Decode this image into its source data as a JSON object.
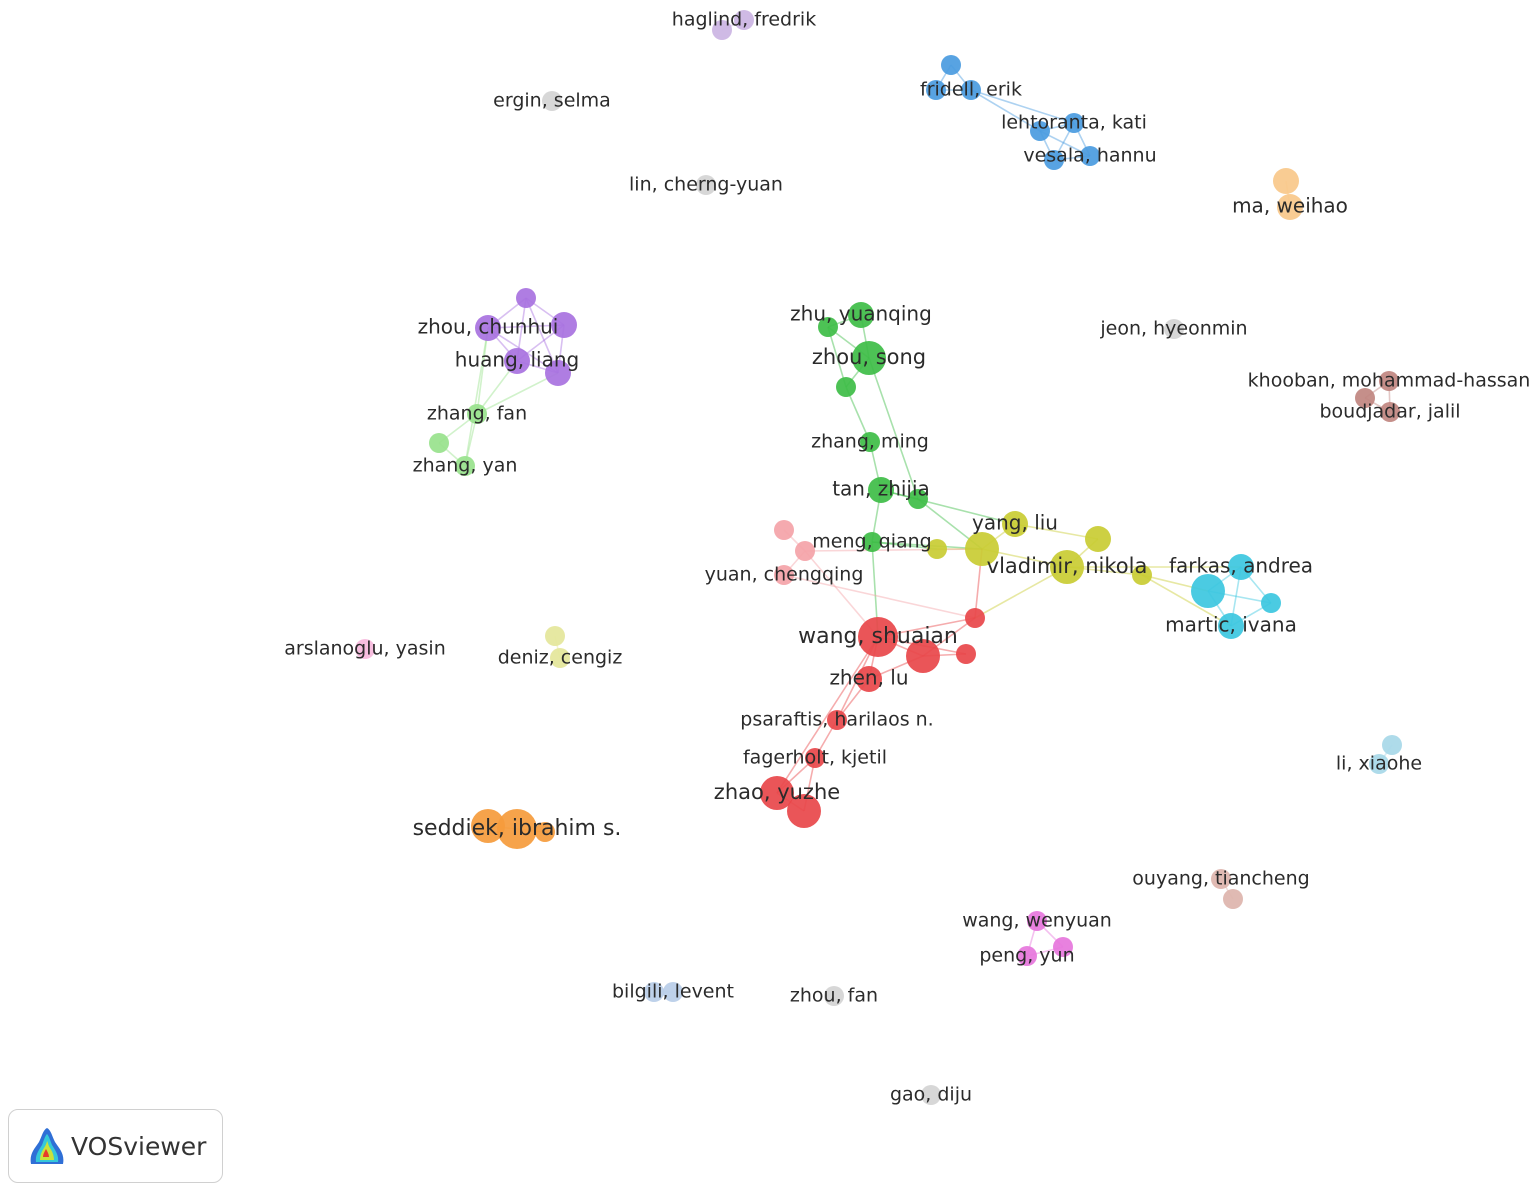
{
  "colors": {
    "red": "#e8474a",
    "green": "#3ebd46",
    "blue": "#4a9be0",
    "lightgreen": "#98e28c",
    "yellow": "#c9cc33",
    "purple": "#a872e0",
    "orange": "#f59b3c",
    "brown": "#c08680",
    "pink": "#f4a3a8",
    "cyan": "#3cc7e0",
    "magenta": "#e676dc",
    "lightblue": "#a7d8e8",
    "lavender": "#cbb4e3",
    "lightorange": "#f8c88a",
    "paleyellow": "#e4e69a",
    "palebrown": "#ddb4ac",
    "paleblue": "#b8cde8",
    "palepink": "#f6b8dc",
    "gray": "#d4d4d4"
  },
  "brand": {
    "name": "VOSviewer",
    "icon": "vosviewer-logo-icon"
  },
  "nodes": [
    {
      "id": "haglind-1",
      "label": "",
      "color": "lavender",
      "weight": 1
    },
    {
      "id": "haglind",
      "label": "haglind, fredrik",
      "color": "lavender",
      "weight": 1
    },
    {
      "id": "ergin",
      "label": "ergin, selma",
      "color": "gray",
      "weight": 1
    },
    {
      "id": "fridell-1",
      "label": "",
      "color": "blue",
      "weight": 1
    },
    {
      "id": "fridell-2",
      "label": "",
      "color": "blue",
      "weight": 1
    },
    {
      "id": "fridell",
      "label": "fridell, erik",
      "color": "blue",
      "weight": 1
    },
    {
      "id": "lehtoranta",
      "label": "lehtoranta, kati",
      "color": "blue",
      "weight": 1
    },
    {
      "id": "lehtoranta-2",
      "label": "",
      "color": "blue",
      "weight": 1
    },
    {
      "id": "vesala",
      "label": "vesala, hannu",
      "color": "blue",
      "weight": 1
    },
    {
      "id": "vesala-2",
      "label": "",
      "color": "blue",
      "weight": 1
    },
    {
      "id": "lin",
      "label": "lin, cherng-yuan",
      "color": "gray",
      "weight": 1
    },
    {
      "id": "ma-1",
      "label": "",
      "color": "lightorange",
      "weight": 2
    },
    {
      "id": "ma",
      "label": "ma, weihao",
      "color": "lightorange",
      "weight": 2
    },
    {
      "id": "zhou-c-1",
      "label": "",
      "color": "purple",
      "weight": 1
    },
    {
      "id": "zhou-c",
      "label": "zhou, chunhui",
      "color": "purple",
      "weight": 2
    },
    {
      "id": "zhou-c-2",
      "label": "",
      "color": "purple",
      "weight": 2
    },
    {
      "id": "huang",
      "label": "huang, liang",
      "color": "purple",
      "weight": 2
    },
    {
      "id": "huang-2",
      "label": "",
      "color": "purple",
      "weight": 2
    },
    {
      "id": "zhang-fan",
      "label": "zhang, fan",
      "color": "lightgreen",
      "weight": 1
    },
    {
      "id": "zhang-yan-1",
      "label": "",
      "color": "lightgreen",
      "weight": 1
    },
    {
      "id": "zhang-yan",
      "label": "zhang, yan",
      "color": "lightgreen",
      "weight": 1
    },
    {
      "id": "zhu-y-1",
      "label": "",
      "color": "green",
      "weight": 1
    },
    {
      "id": "zhu-y",
      "label": "zhu, yuanqing",
      "color": "green",
      "weight": 2
    },
    {
      "id": "zhou-song",
      "label": "zhou, song",
      "color": "green",
      "weight": 3
    },
    {
      "id": "zhou-song-2",
      "label": "",
      "color": "green",
      "weight": 1
    },
    {
      "id": "zhang-ming",
      "label": "zhang, ming",
      "color": "green",
      "weight": 1
    },
    {
      "id": "tan",
      "label": "tan, zhijia",
      "color": "green",
      "weight": 2
    },
    {
      "id": "tan-2",
      "label": "",
      "color": "green",
      "weight": 1
    },
    {
      "id": "meng",
      "label": "meng, qiang",
      "color": "green",
      "weight": 1
    },
    {
      "id": "jeon",
      "label": "jeon, hyeonmin",
      "color": "gray",
      "weight": 1
    },
    {
      "id": "khooban",
      "label": "khooban, mohammad-hassan",
      "color": "brown",
      "weight": 1
    },
    {
      "id": "boudjadar-1",
      "label": "",
      "color": "brown",
      "weight": 1
    },
    {
      "id": "boudjadar",
      "label": "boudjadar, jalil",
      "color": "brown",
      "weight": 1
    },
    {
      "id": "yang",
      "label": "yang, liu",
      "color": "yellow",
      "weight": 2
    },
    {
      "id": "yang-2",
      "label": "",
      "color": "yellow",
      "weight": 3
    },
    {
      "id": "yang-3",
      "label": "",
      "color": "yellow",
      "weight": 1
    },
    {
      "id": "vladimir",
      "label": "vladimir, nikola",
      "color": "yellow",
      "weight": 3
    },
    {
      "id": "vladimir-2",
      "label": "",
      "color": "yellow",
      "weight": 2
    },
    {
      "id": "vladimir-3",
      "label": "",
      "color": "yellow",
      "weight": 1
    },
    {
      "id": "yuan-1",
      "label": "",
      "color": "pink",
      "weight": 1
    },
    {
      "id": "yuan-2",
      "label": "",
      "color": "pink",
      "weight": 1
    },
    {
      "id": "yuan",
      "label": "yuan, chengqing",
      "color": "pink",
      "weight": 1
    },
    {
      "id": "farkas",
      "label": "farkas, andrea",
      "color": "cyan",
      "weight": 2
    },
    {
      "id": "farkas-2",
      "label": "",
      "color": "cyan",
      "weight": 3
    },
    {
      "id": "farkas-3",
      "label": "",
      "color": "cyan",
      "weight": 1
    },
    {
      "id": "martic",
      "label": "martic, ivana",
      "color": "cyan",
      "weight": 2
    },
    {
      "id": "wang-s",
      "label": "wang, shuaian",
      "color": "red",
      "weight": 4
    },
    {
      "id": "wang-s-2",
      "label": "",
      "color": "red",
      "weight": 3
    },
    {
      "id": "wang-s-3",
      "label": "",
      "color": "red",
      "weight": 1
    },
    {
      "id": "wang-s-4",
      "label": "",
      "color": "red",
      "weight": 1
    },
    {
      "id": "zhen",
      "label": "zhen, lu",
      "color": "red",
      "weight": 2
    },
    {
      "id": "psaraftis",
      "label": "psaraftis, harilaos n.",
      "color": "red",
      "weight": 1
    },
    {
      "id": "fagerholt",
      "label": "fagerholt, kjetil",
      "color": "red",
      "weight": 1
    },
    {
      "id": "zhao",
      "label": "zhao, yuzhe",
      "color": "red",
      "weight": 3
    },
    {
      "id": "zhao-2",
      "label": "",
      "color": "red",
      "weight": 3
    },
    {
      "id": "arslanoglu",
      "label": "arslanoglu, yasin",
      "color": "palepink",
      "weight": 1
    },
    {
      "id": "deniz-1",
      "label": "",
      "color": "paleyellow",
      "weight": 1
    },
    {
      "id": "deniz",
      "label": "deniz, cengiz",
      "color": "paleyellow",
      "weight": 1
    },
    {
      "id": "li-x-1",
      "label": "",
      "color": "lightblue",
      "weight": 1
    },
    {
      "id": "li-x",
      "label": "li, xiaohe",
      "color": "lightblue",
      "weight": 1
    },
    {
      "id": "seddiek-1",
      "label": "",
      "color": "orange",
      "weight": 3
    },
    {
      "id": "seddiek",
      "label": "seddiek, ibrahim s.",
      "color": "orange",
      "weight": 4
    },
    {
      "id": "seddiek-2",
      "label": "",
      "color": "orange",
      "weight": 1
    },
    {
      "id": "ouyang",
      "label": "ouyang, tiancheng",
      "color": "palebrown",
      "weight": 1
    },
    {
      "id": "ouyang-2",
      "label": "",
      "color": "palebrown",
      "weight": 1
    },
    {
      "id": "wang-w",
      "label": "wang, wenyuan",
      "color": "magenta",
      "weight": 1
    },
    {
      "id": "wang-w-2",
      "label": "",
      "color": "magenta",
      "weight": 1
    },
    {
      "id": "peng",
      "label": "peng, yun",
      "color": "magenta",
      "weight": 1
    },
    {
      "id": "bilgili-1",
      "label": "",
      "color": "paleblue",
      "weight": 1
    },
    {
      "id": "bilgili",
      "label": "bilgili, levent",
      "color": "paleblue",
      "weight": 1
    },
    {
      "id": "zhou-fan",
      "label": "zhou, fan",
      "color": "gray",
      "weight": 1
    },
    {
      "id": "gao",
      "label": "gao, diju",
      "color": "gray",
      "weight": 1
    }
  ],
  "links": [
    [
      "fridell-1",
      "fridell"
    ],
    [
      "fridell-1",
      "fridell-2"
    ],
    [
      "fridell-2",
      "fridell"
    ],
    [
      "fridell",
      "lehtoranta"
    ],
    [
      "fridell",
      "lehtoranta-2"
    ],
    [
      "lehtoranta",
      "lehtoranta-2"
    ],
    [
      "lehtoranta",
      "vesala"
    ],
    [
      "lehtoranta",
      "vesala-2"
    ],
    [
      "lehtoranta-2",
      "vesala"
    ],
    [
      "lehtoranta-2",
      "vesala-2"
    ],
    [
      "vesala",
      "vesala-2"
    ],
    [
      "haglind-1",
      "haglind"
    ],
    [
      "ma-1",
      "ma"
    ],
    [
      "zhou-c-1",
      "zhou-c"
    ],
    [
      "zhou-c-1",
      "zhou-c-2"
    ],
    [
      "zhou-c-1",
      "huang"
    ],
    [
      "zhou-c-1",
      "huang-2"
    ],
    [
      "zhou-c",
      "zhou-c-2"
    ],
    [
      "zhou-c",
      "huang"
    ],
    [
      "zhou-c",
      "huang-2"
    ],
    [
      "zhou-c-2",
      "huang"
    ],
    [
      "zhou-c-2",
      "huang-2"
    ],
    [
      "huang",
      "huang-2"
    ],
    [
      "zhang-fan",
      "zhou-c"
    ],
    [
      "zhang-fan",
      "huang"
    ],
    [
      "zhang-fan",
      "huang-2"
    ],
    [
      "zhang-yan",
      "zhou-c"
    ],
    [
      "zhang-fan",
      "zhang-yan-1"
    ],
    [
      "zhang-fan",
      "zhang-yan"
    ],
    [
      "zhang-yan-1",
      "zhang-yan"
    ],
    [
      "zhu-y-1",
      "zhu-y"
    ],
    [
      "zhu-y-1",
      "zhou-song"
    ],
    [
      "zhu-y",
      "zhou-song"
    ],
    [
      "zhou-song",
      "zhou-song-2"
    ],
    [
      "zhu-y-1",
      "zhou-song-2"
    ],
    [
      "zhou-song-2",
      "zhang-ming"
    ],
    [
      "zhou-song",
      "tan-2"
    ],
    [
      "zhang-ming",
      "tan"
    ],
    [
      "tan",
      "tan-2"
    ],
    [
      "tan",
      "meng"
    ],
    [
      "tan-2",
      "yang-2"
    ],
    [
      "tan",
      "yang"
    ],
    [
      "meng",
      "wang-s"
    ],
    [
      "meng",
      "yang-2"
    ],
    [
      "meng",
      "yang-3"
    ],
    [
      "yang",
      "yang-2"
    ],
    [
      "yang",
      "vladimir-2"
    ],
    [
      "yang-2",
      "yang-3"
    ],
    [
      "yang-2",
      "vladimir"
    ],
    [
      "vladimir",
      "vladimir-2"
    ],
    [
      "vladimir",
      "vladimir-3"
    ],
    [
      "vladimir",
      "wang-s-3"
    ],
    [
      "vladimir-3",
      "farkas-2"
    ],
    [
      "vladimir-3",
      "martic"
    ],
    [
      "vladimir",
      "farkas"
    ],
    [
      "farkas",
      "farkas-2"
    ],
    [
      "farkas",
      "farkas-3"
    ],
    [
      "farkas",
      "martic"
    ],
    [
      "farkas-2",
      "farkas-3"
    ],
    [
      "farkas-2",
      "martic"
    ],
    [
      "farkas-3",
      "martic"
    ],
    [
      "yuan-1",
      "yuan-2"
    ],
    [
      "yuan-2",
      "yuan"
    ],
    [
      "yuan-2",
      "yang-2"
    ],
    [
      "yuan",
      "wang-s-3"
    ],
    [
      "yuan-2",
      "wang-s"
    ],
    [
      "wang-s",
      "wang-s-2"
    ],
    [
      "wang-s",
      "wang-s-3"
    ],
    [
      "wang-s",
      "wang-s-4"
    ],
    [
      "wang-s-2",
      "wang-s-3"
    ],
    [
      "wang-s-2",
      "wang-s-4"
    ],
    [
      "wang-s",
      "zhen"
    ],
    [
      "wang-s-2",
      "zhen"
    ],
    [
      "zhen",
      "psaraftis"
    ],
    [
      "wang-s",
      "psaraftis"
    ],
    [
      "psaraftis",
      "fagerholt"
    ],
    [
      "fagerholt",
      "zhao"
    ],
    [
      "fagerholt",
      "zhao-2"
    ],
    [
      "zhao",
      "zhao-2"
    ],
    [
      "wang-s",
      "zhao"
    ],
    [
      "wang-s-3",
      "yang-2"
    ],
    [
      "seddiek-1",
      "seddiek"
    ],
    [
      "seddiek",
      "seddiek-2"
    ],
    [
      "deniz-1",
      "deniz"
    ],
    [
      "li-x-1",
      "li-x"
    ],
    [
      "boudjadar-1",
      "khooban"
    ],
    [
      "boudjadar-1",
      "boudjadar"
    ],
    [
      "khooban",
      "boudjadar"
    ],
    [
      "ouyang",
      "ouyang-2"
    ],
    [
      "wang-w",
      "wang-w-2"
    ],
    [
      "wang-w",
      "peng"
    ],
    [
      "wang-w-2",
      "peng"
    ],
    [
      "bilgili-1",
      "bilgili"
    ]
  ]
}
